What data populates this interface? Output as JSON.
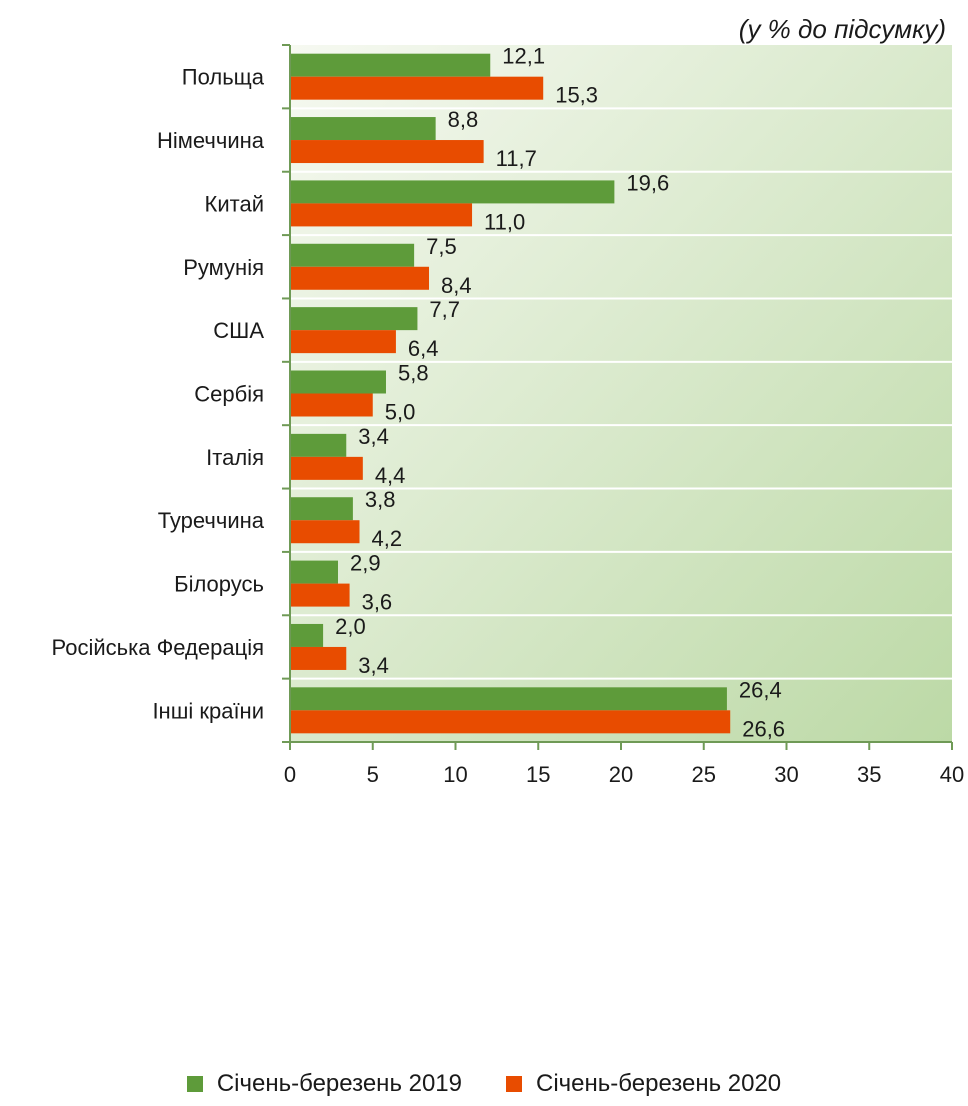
{
  "chart_data": {
    "type": "bar",
    "orientation": "horizontal",
    "unit_note": "(у % до підсумку)",
    "categories": [
      "Польща",
      "Німеччина",
      "Китай",
      "Румунія",
      "США",
      "Сербія",
      "Італія",
      "Туреччина",
      "Білорусь",
      "Російська Федерація",
      "Інші країни"
    ],
    "series": [
      {
        "name": "Січень-березень 2019",
        "color": "#5e9b3a",
        "values": [
          12.1,
          8.8,
          19.6,
          7.5,
          7.7,
          5.8,
          3.4,
          3.8,
          2.9,
          2.0,
          26.4
        ],
        "labels": [
          "12,1",
          "8,8",
          "19,6",
          "7,5",
          "7,7",
          "5,8",
          "3,4",
          "3,8",
          "2,9",
          "2,0",
          "26,4"
        ]
      },
      {
        "name": "Січень-березень 2020",
        "color": "#e84c00",
        "values": [
          15.3,
          11.7,
          11.0,
          8.4,
          6.4,
          5.0,
          4.4,
          4.2,
          3.6,
          3.4,
          26.6
        ],
        "labels": [
          "15,3",
          "11,7",
          "11,0",
          "8,4",
          "6,4",
          "5,0",
          "4,4",
          "4,2",
          "3,6",
          "3,4",
          "26,6"
        ]
      }
    ],
    "xlim": [
      0,
      40
    ],
    "xticks": [
      0,
      5,
      10,
      15,
      20,
      25,
      30,
      35,
      40
    ],
    "grid": true,
    "legend_position": "bottom"
  }
}
